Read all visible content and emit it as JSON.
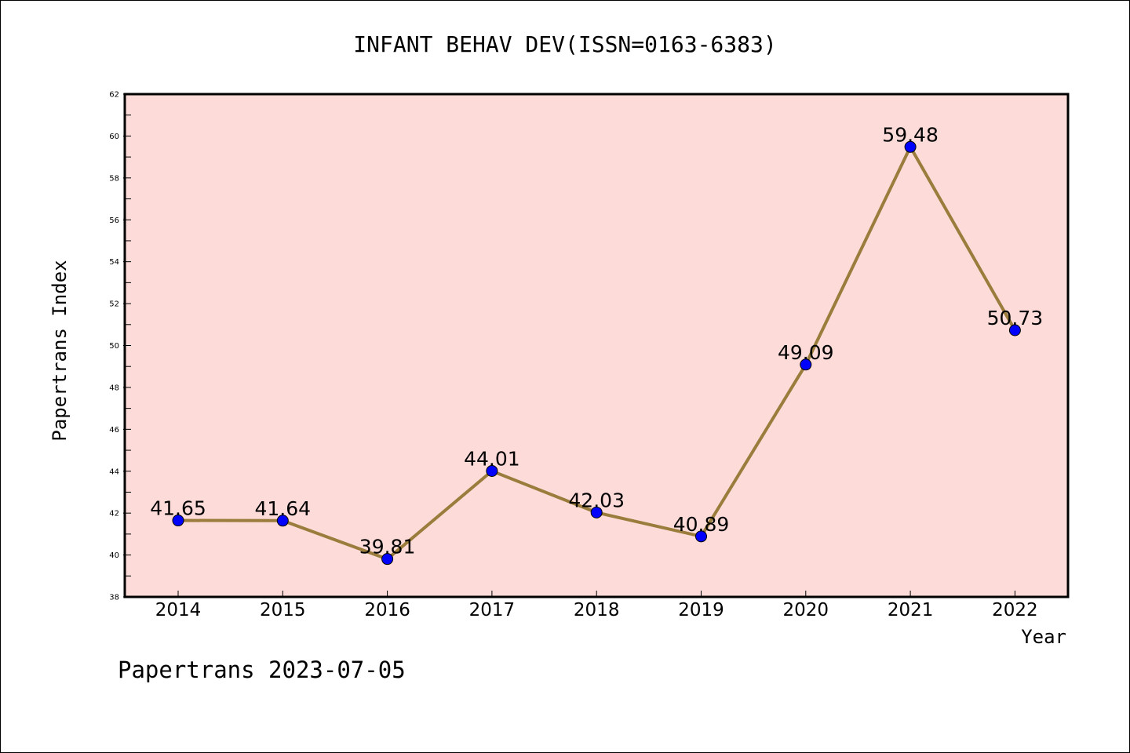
{
  "chart_data": {
    "type": "line",
    "title": "INFANT BEHAV DEV(ISSN=0163-6383)",
    "xlabel": "Year",
    "ylabel": "Papertrans Index",
    "categories": [
      "2014",
      "2015",
      "2016",
      "2017",
      "2018",
      "2019",
      "2020",
      "2021",
      "2022"
    ],
    "values": [
      41.65,
      41.64,
      39.81,
      44.01,
      42.03,
      40.89,
      49.09,
      59.48,
      50.73
    ],
    "data_labels": [
      "41.65",
      "41.64",
      "39.81",
      "44.01",
      "42.03",
      "40.89",
      "49.09",
      "59.48",
      "50.73"
    ],
    "ylim": [
      38,
      62
    ],
    "yticks": [
      "38",
      "40",
      "42",
      "44",
      "46",
      "48",
      "50",
      "52",
      "54",
      "56",
      "58",
      "60",
      "62"
    ],
    "grid": false,
    "legend": "none",
    "line_color": "#9a7d3c",
    "marker_color": "#0000ff",
    "plot_background": "#fddbd8"
  },
  "footer": "Papertrans 2023-07-05"
}
